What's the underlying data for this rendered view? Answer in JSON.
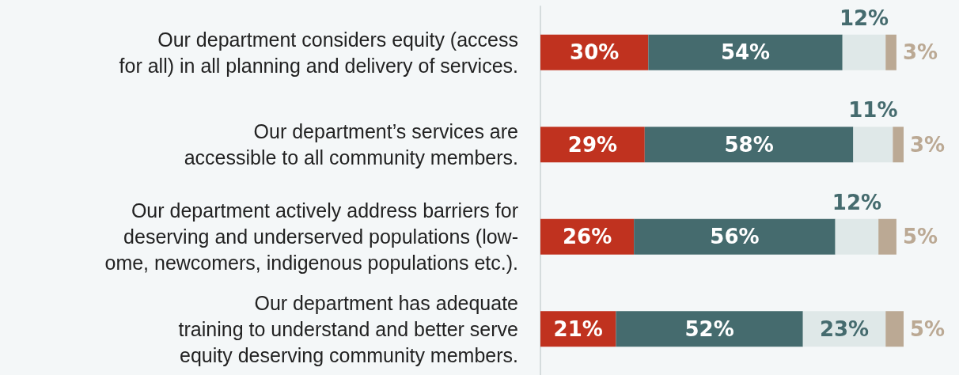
{
  "chart_data": {
    "type": "bar",
    "orientation": "horizontal",
    "stacked": true,
    "categories": [
      "Our department considers equity (access\nfor all) in all planning and delivery of services.",
      "Our department’s services are\naccessible to all community members.",
      "Our department actively address barriers for\ndeserving and underserved populations (low-\nome, newcomers, indigenous populations etc.).",
      "Our department has adequate\ntraining to understand and better serve\nequity deserving community members."
    ],
    "series": [
      {
        "color": "#c0321f",
        "values": [
          30,
          29,
          26,
          21
        ],
        "value_labels": [
          "30%",
          "29%",
          "26%",
          "21%"
        ]
      },
      {
        "color": "#456b6e",
        "values": [
          54,
          58,
          56,
          52
        ],
        "value_labels": [
          "54%",
          "58%",
          "56%",
          "52%"
        ]
      },
      {
        "color": "#dfe8e8",
        "values": [
          12,
          11,
          12,
          23
        ],
        "value_labels": [
          "12%",
          "11%",
          "12%",
          "23%"
        ]
      },
      {
        "color": "#bba994",
        "values": [
          3,
          3,
          5,
          5
        ],
        "value_labels": [
          "3%",
          "3%",
          "5%",
          "5%"
        ]
      }
    ]
  }
}
